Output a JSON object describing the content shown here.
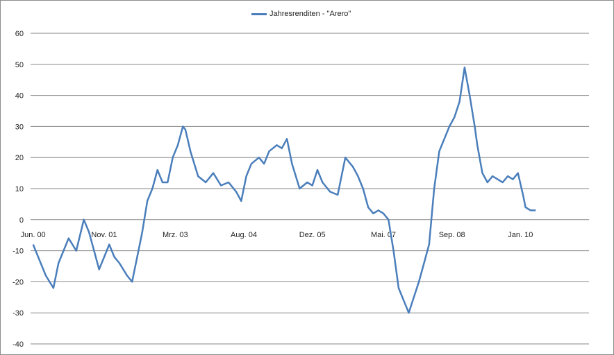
{
  "chart_data": {
    "type": "line",
    "title": "",
    "xlabel": "",
    "ylabel": "",
    "ylim": [
      -40,
      60
    ],
    "y_ticks": [
      60,
      50,
      40,
      30,
      20,
      10,
      0,
      -10,
      -20,
      -30,
      -40
    ],
    "x_tick_labels": [
      "Jun. 00",
      "Nov. 01",
      "Mrz. 03",
      "Aug. 04",
      "Dez. 05",
      "Mai. 07",
      "Sep. 08",
      "Jan. 10"
    ],
    "grid": "horizontal",
    "legend_position": "top",
    "series": [
      {
        "name": "Jahresrenditen - \"Arero\"",
        "color": "#4a7ebb",
        "x": [
          2000.45,
          2000.55,
          2000.7,
          2000.85,
          2000.95,
          2001.05,
          2001.15,
          2001.3,
          2001.45,
          2001.55,
          2001.65,
          2001.75,
          2001.85,
          2001.95,
          2002.05,
          2002.15,
          2002.3,
          2002.4,
          2002.5,
          2002.6,
          2002.7,
          2002.8,
          2002.9,
          2003.0,
          2003.1,
          2003.2,
          2003.3,
          2003.4,
          2003.45,
          2003.55,
          2003.7,
          2003.85,
          2004.0,
          2004.15,
          2004.3,
          2004.45,
          2004.55,
          2004.65,
          2004.75,
          2004.9,
          2005.0,
          2005.1,
          2005.25,
          2005.35,
          2005.45,
          2005.55,
          2005.7,
          2005.85,
          2005.95,
          2006.05,
          2006.15,
          2006.3,
          2006.45,
          2006.6,
          2006.75,
          2006.85,
          2006.95,
          2007.05,
          2007.15,
          2007.25,
          2007.35,
          2007.45,
          2007.55,
          2007.65,
          2007.75,
          2007.85,
          2007.95,
          2008.05,
          2008.15,
          2008.25,
          2008.35,
          2008.45,
          2008.55,
          2008.65,
          2008.75,
          2008.85,
          2008.95,
          2009.05,
          2009.15,
          2009.2,
          2009.3,
          2009.4,
          2009.5,
          2009.6,
          2009.7,
          2009.8,
          2009.9,
          2010.0,
          2010.1,
          2010.15,
          2010.25,
          2010.35
        ],
        "values": [
          -8,
          -12,
          -18,
          -22,
          -14,
          -10,
          -6,
          -10,
          0,
          -4,
          -10,
          -16,
          -12,
          -8,
          -12,
          -14,
          -18,
          -20,
          -12,
          -4,
          6,
          10,
          16,
          12,
          12,
          20,
          24,
          30,
          29,
          22,
          14,
          12,
          15,
          11,
          12,
          9,
          6,
          14,
          18,
          20,
          18,
          22,
          24,
          23,
          26,
          18,
          10,
          12,
          11,
          16,
          12,
          9,
          8,
          20,
          17,
          14,
          10,
          4,
          2,
          3,
          2,
          0,
          -10,
          -22,
          -26,
          -30,
          -25,
          -20,
          -14,
          -8,
          10,
          22,
          26,
          30,
          33,
          38,
          49,
          40,
          30,
          24,
          15,
          12,
          14,
          13,
          12,
          14,
          13,
          15,
          8,
          4,
          3,
          3
        ]
      }
    ]
  }
}
